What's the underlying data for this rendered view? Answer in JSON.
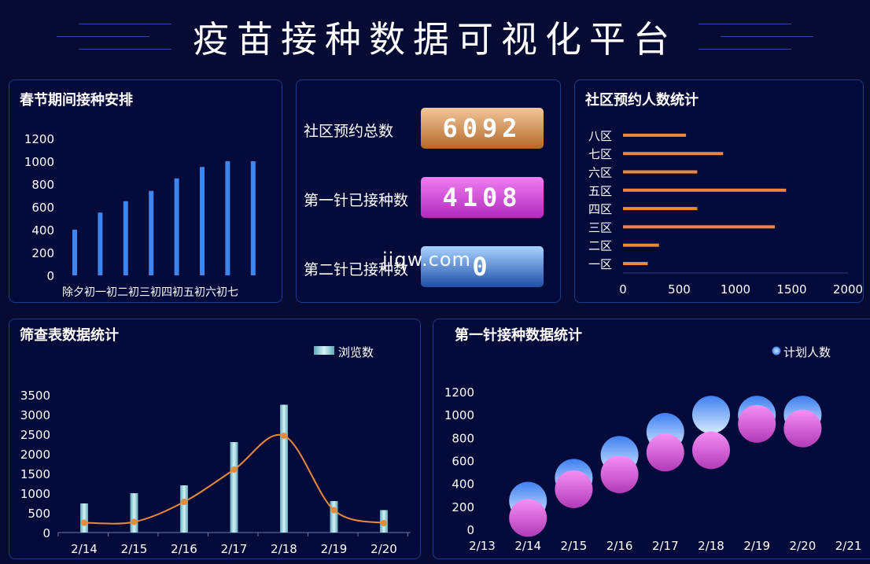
{
  "page_title": "疫苗接种数据可视化平台",
  "watermark": "jiqw.com",
  "colors": {
    "background": "#050b33",
    "panel_border": "#1d3a8c",
    "bar_blue": "#3d86f0",
    "bar_orange": "#e88a3a",
    "pink": "#e060e0",
    "cyan": "#9fd6e0"
  },
  "spring": {
    "title": "春节期间接种安排",
    "chart_data": {
      "type": "bar",
      "categories": [
        "除夕",
        "初一",
        "初二",
        "初三",
        "初四",
        "初五",
        "初六",
        "初七"
      ],
      "category_text": "除夕初一初二初三初四初五初六初七",
      "values": [
        400,
        550,
        650,
        740,
        850,
        950,
        1000,
        1000
      ],
      "ylim": [
        0,
        1200
      ],
      "yticks": [
        "0",
        "200",
        "400",
        "600",
        "800",
        "1000",
        "1200"
      ]
    }
  },
  "kpi": {
    "items": [
      {
        "label": "社区预约总数",
        "value": "6092"
      },
      {
        "label": "第一针已接种数",
        "value": "4108"
      },
      {
        "label": "第二针已接种数",
        "value": "0"
      }
    ]
  },
  "community": {
    "title": "社区预约人数统计",
    "chart_data": {
      "type": "bar",
      "orientation": "horizontal",
      "categories": [
        "一区",
        "二区",
        "三区",
        "四区",
        "五区",
        "六区",
        "七区",
        "八区"
      ],
      "values": [
        220,
        320,
        1350,
        660,
        1450,
        660,
        890,
        560
      ],
      "xlim": [
        0,
        2000
      ],
      "xticks": [
        "0",
        "500",
        "1000",
        "1500",
        "2000"
      ]
    }
  },
  "screening": {
    "title": "筛查表数据统计",
    "legend": "浏览数",
    "chart_data": {
      "type": "bar",
      "categories": [
        "2/14",
        "2/15",
        "2/16",
        "2/17",
        "2/18",
        "2/19",
        "2/20"
      ],
      "series": [
        {
          "name": "浏览数",
          "type": "bar",
          "values": [
            740,
            1000,
            1200,
            2300,
            3250,
            800,
            570
          ]
        },
        {
          "type": "line",
          "values": [
            250,
            270,
            780,
            1600,
            2460,
            570,
            240
          ]
        }
      ],
      "ylim": [
        0,
        3500
      ],
      "yticks": [
        "0",
        "500",
        "1000",
        "1500",
        "2000",
        "2500",
        "3000",
        "3500"
      ]
    }
  },
  "first_dose": {
    "title": "第一针接种数据统计",
    "legend": "计划人数",
    "chart_data": {
      "type": "scatter",
      "x": [
        "2/14",
        "2/15",
        "2/16",
        "2/17",
        "2/18",
        "2/19",
        "2/20"
      ],
      "xticks": [
        "2/13",
        "2/14",
        "2/15",
        "2/16",
        "2/17",
        "2/18",
        "2/19",
        "2/20",
        "2/21"
      ],
      "series": [
        {
          "name": "计划人数",
          "values": [
            250,
            450,
            650,
            850,
            1000,
            1000,
            1000
          ]
        },
        {
          "values": [
            100,
            350,
            480,
            670,
            690,
            920,
            880
          ]
        }
      ],
      "ylim": [
        0,
        1200
      ],
      "yticks": [
        "0",
        "200",
        "400",
        "600",
        "800",
        "1000",
        "1200"
      ]
    }
  }
}
